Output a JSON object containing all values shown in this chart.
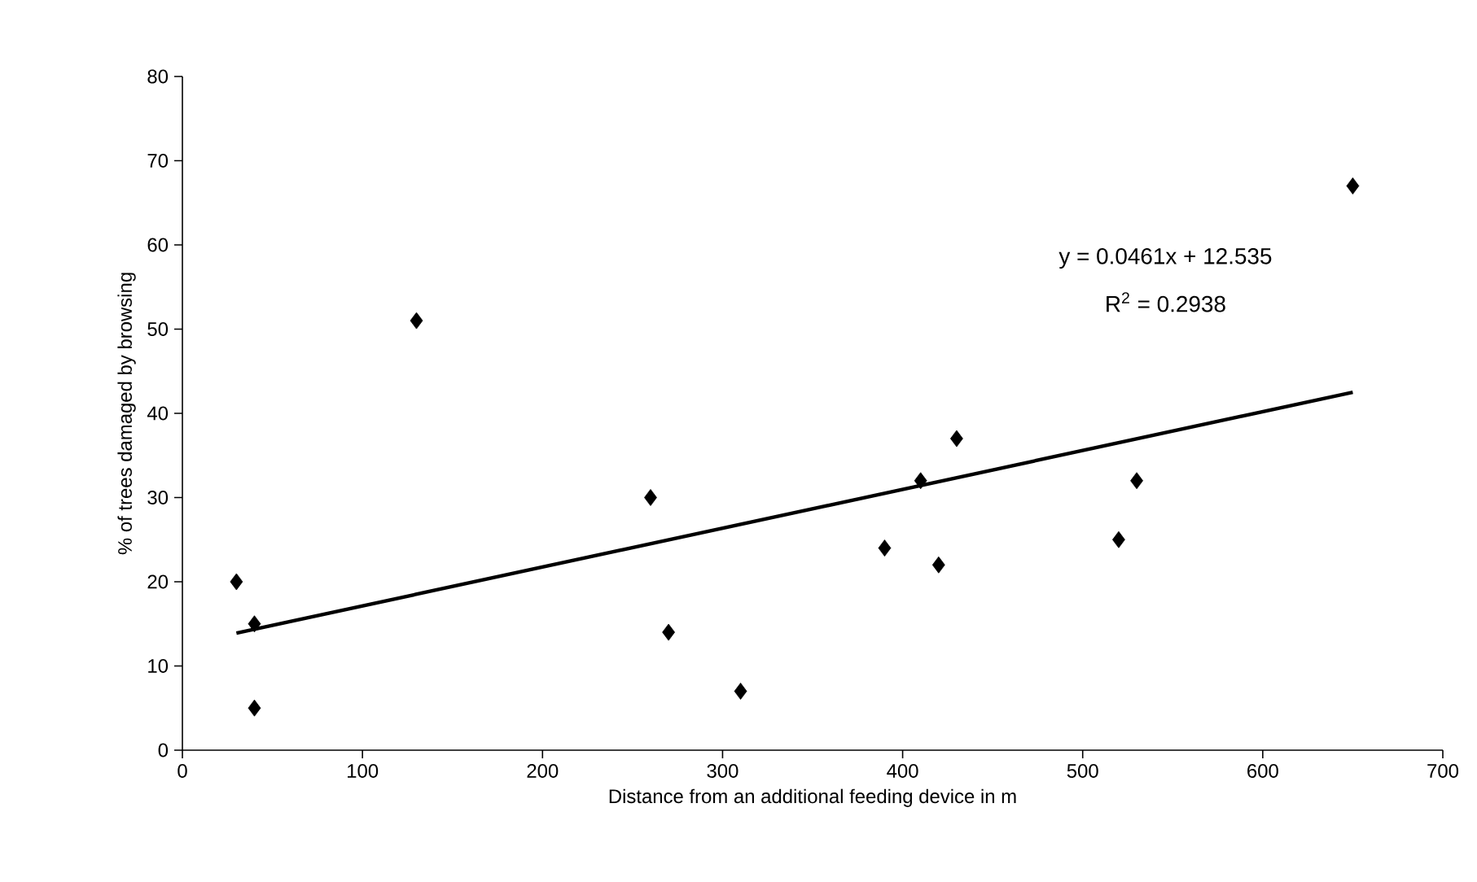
{
  "chart_data": {
    "type": "scatter",
    "xlabel": "Distance from an additional feeding device  in m",
    "ylabel": "% of trees damaged by browsing",
    "annotations": [
      "y = 0.0461x + 12.535",
      "R$^{2}$ = 0.2938"
    ],
    "xlim": [
      0,
      700
    ],
    "xticks": [
      0,
      100,
      200,
      300,
      400,
      500,
      600,
      700
    ],
    "ylim": [
      0,
      80
    ],
    "yticks": [
      0,
      10,
      20,
      30,
      40,
      50,
      60,
      70,
      80
    ],
    "grid": false,
    "marker": "diamond",
    "series": [
      {
        "color": "#000000",
        "x": [
          30,
          40,
          40,
          130,
          260,
          270,
          310,
          390,
          410,
          420,
          430,
          520,
          530,
          650
        ],
        "values": [
          20,
          15,
          5,
          51,
          30,
          14,
          7,
          24,
          32,
          22,
          37,
          25,
          32,
          67
        ]
      },
      {
        "type": "line",
        "color": "#000000",
        "line_style": "solid",
        "marker": "none",
        "x": [
          30,
          650
        ],
        "values": [
          13.9,
          42.5
        ]
      }
    ]
  }
}
